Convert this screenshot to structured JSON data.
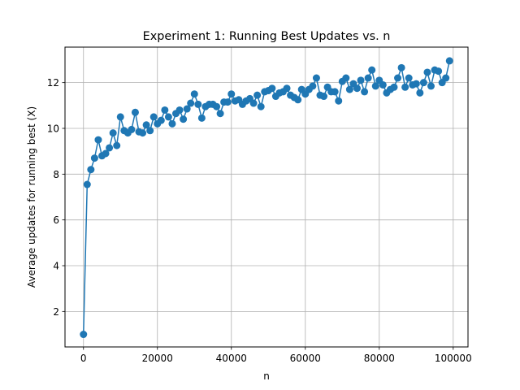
{
  "chart_data": {
    "type": "line",
    "title": "Experiment 1: Running Best Updates vs. n",
    "xlabel": "n",
    "ylabel": "Average updates for running best (X)",
    "xlim": [
      -5000,
      104000
    ],
    "ylim": [
      0.45,
      13.55
    ],
    "xticks": [
      0,
      20000,
      40000,
      60000,
      80000,
      100000
    ],
    "yticks": [
      2,
      4,
      6,
      8,
      10,
      12
    ],
    "grid": true,
    "marker": "circle",
    "color": "#1f77b4",
    "series": [
      {
        "x": [
          1,
          1000,
          2000,
          3000,
          4000,
          5000,
          6000,
          7000,
          8000,
          9000,
          10000,
          11000,
          12000,
          13000,
          14000,
          15000,
          16000,
          17000,
          18000,
          19000,
          20000,
          21000,
          22000,
          23000,
          24000,
          25000,
          26000,
          27000,
          28000,
          29000,
          30000,
          31000,
          32000,
          33000,
          34000,
          35000,
          36000,
          37000,
          38000,
          39000,
          40000,
          41000,
          42000,
          43000,
          44000,
          45000,
          46000,
          47000,
          48000,
          49000,
          50000,
          51000,
          52000,
          53000,
          54000,
          55000,
          56000,
          57000,
          58000,
          59000,
          60000,
          61000,
          62000,
          63000,
          64000,
          65000,
          66000,
          67000,
          68000,
          69000,
          70000,
          71000,
          72000,
          73000,
          74000,
          75000,
          76000,
          77000,
          78000,
          79000,
          80000,
          81000,
          82000,
          83000,
          84000,
          85000,
          86000,
          87000,
          88000,
          89000,
          90000,
          91000,
          92000,
          93000,
          94000,
          95000,
          96000,
          97000,
          98000,
          99000
        ],
        "values": [
          1.0,
          7.55,
          8.2,
          8.7,
          9.5,
          8.8,
          8.9,
          9.15,
          9.8,
          9.25,
          10.5,
          9.9,
          9.8,
          9.95,
          10.7,
          9.85,
          9.8,
          10.15,
          9.9,
          10.5,
          10.2,
          10.35,
          10.8,
          10.5,
          10.2,
          10.65,
          10.8,
          10.4,
          10.85,
          11.1,
          11.5,
          11.05,
          10.45,
          10.95,
          11.05,
          11.05,
          10.95,
          10.65,
          11.15,
          11.15,
          11.5,
          11.2,
          11.25,
          11.05,
          11.2,
          11.3,
          11.1,
          11.45,
          10.95,
          11.6,
          11.65,
          11.75,
          11.4,
          11.55,
          11.6,
          11.75,
          11.45,
          11.35,
          11.25,
          11.7,
          11.5,
          11.7,
          11.85,
          12.2,
          11.45,
          11.4,
          11.8,
          11.6,
          11.6,
          11.2,
          12.05,
          12.2,
          11.7,
          11.95,
          11.75,
          12.1,
          11.6,
          12.2,
          12.55,
          11.85,
          12.1,
          11.9,
          11.55,
          11.7,
          11.8,
          12.2,
          12.65,
          11.8,
          12.2,
          11.9,
          11.95,
          11.55,
          12.0,
          12.45,
          11.85,
          12.55,
          12.5,
          12.0,
          12.2,
          12.95
        ]
      }
    ]
  }
}
